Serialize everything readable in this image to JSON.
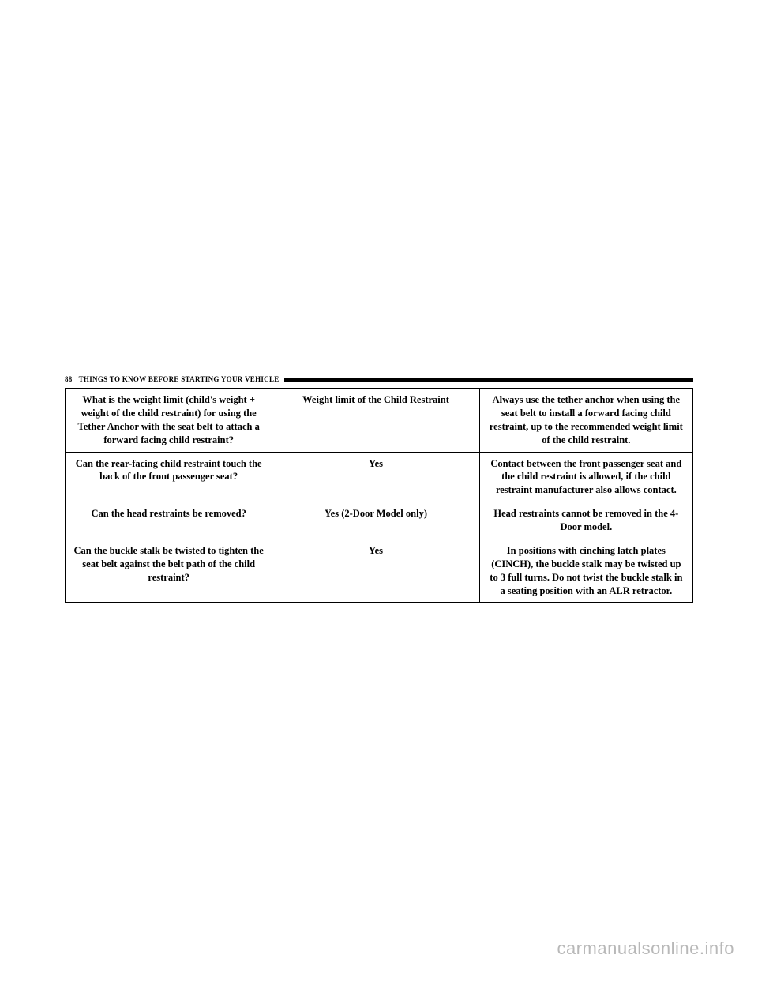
{
  "header": {
    "page_number": "88",
    "section_title": "THINGS TO KNOW BEFORE STARTING YOUR VEHICLE"
  },
  "table": {
    "rows": [
      {
        "q": "What is the weight limit (child's weight + weight of the child restraint) for using the Tether Anchor with the seat belt to attach a forward facing child restraint?",
        "a": "Weight limit of the Child Restraint",
        "info": "Always use the tether anchor when using the seat belt to install a forward facing child restraint, up to the recommended weight limit of the child restraint."
      },
      {
        "q": "Can the rear-facing child restraint touch the back of the front passenger seat?",
        "a": "Yes",
        "info": "Contact between the front passenger seat and the child restraint is allowed, if the child restraint manufacturer also allows contact."
      },
      {
        "q": "Can the head restraints be removed?",
        "a": "Yes (2-Door Model only)",
        "info": "Head restraints cannot be removed in the 4-Door model."
      },
      {
        "q": "Can the buckle stalk be twisted to tighten the seat belt against the belt path of the child restraint?",
        "a": "Yes",
        "info": "In positions with cinching latch plates (CINCH), the buckle stalk may be twisted up to 3 full turns. Do not twist the buckle stalk in a seating position with an ALR retractor."
      }
    ]
  },
  "watermark": "carmanualsonline.info"
}
